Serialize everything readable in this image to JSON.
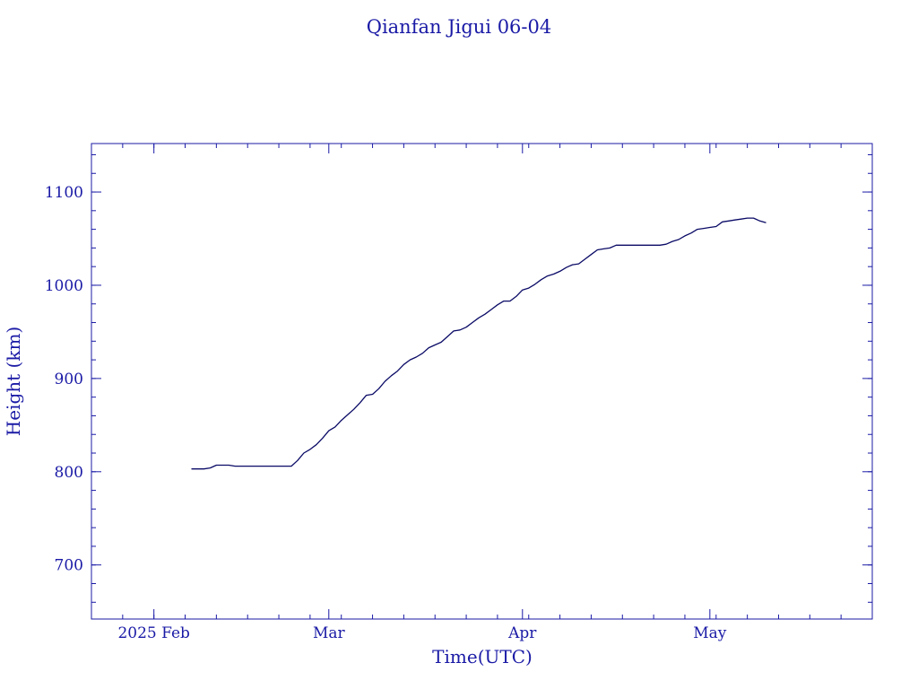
{
  "chart_data": {
    "type": "line",
    "title": "Qianfan Jigui 06-04",
    "xlabel": "Time(UTC)",
    "ylabel": "Height (km)",
    "x_ticks": [
      {
        "date": "2025-02-01",
        "label": "2025 Feb"
      },
      {
        "date": "2025-03-01",
        "label": "Mar"
      },
      {
        "date": "2025-04-01",
        "label": "Apr"
      },
      {
        "date": "2025-05-01",
        "label": "May"
      }
    ],
    "y_ticks": [
      700,
      800,
      900,
      1000,
      1100
    ],
    "xlim": [
      "2025-01-22",
      "2025-05-27"
    ],
    "ylim": [
      642,
      1152
    ],
    "x_minor_tick_days": 5,
    "y_minor_tick": 20,
    "grid": false,
    "line_color": "#0a0a66",
    "axis_color": "#1a1aa6",
    "background": "#ffffff",
    "series": [
      {
        "points": [
          [
            "2025-02-07",
            803
          ],
          [
            "2025-02-08",
            803
          ],
          [
            "2025-02-09",
            803
          ],
          [
            "2025-02-10",
            804
          ],
          [
            "2025-02-11",
            807
          ],
          [
            "2025-02-12",
            807
          ],
          [
            "2025-02-13",
            807
          ],
          [
            "2025-02-14",
            806
          ],
          [
            "2025-02-15",
            806
          ],
          [
            "2025-02-16",
            806
          ],
          [
            "2025-02-17",
            806
          ],
          [
            "2025-02-18",
            806
          ],
          [
            "2025-02-19",
            806
          ],
          [
            "2025-02-20",
            806
          ],
          [
            "2025-02-21",
            806
          ],
          [
            "2025-02-22",
            806
          ],
          [
            "2025-02-23",
            806
          ],
          [
            "2025-02-24",
            812
          ],
          [
            "2025-02-25",
            820
          ],
          [
            "2025-02-26",
            824
          ],
          [
            "2025-02-27",
            829
          ],
          [
            "2025-02-28",
            836
          ],
          [
            "2025-03-01",
            844
          ],
          [
            "2025-03-02",
            848
          ],
          [
            "2025-03-03",
            855
          ],
          [
            "2025-03-04",
            861
          ],
          [
            "2025-03-05",
            867
          ],
          [
            "2025-03-06",
            874
          ],
          [
            "2025-03-07",
            882
          ],
          [
            "2025-03-08",
            883
          ],
          [
            "2025-03-09",
            889
          ],
          [
            "2025-03-10",
            897
          ],
          [
            "2025-03-11",
            903
          ],
          [
            "2025-03-12",
            908
          ],
          [
            "2025-03-13",
            915
          ],
          [
            "2025-03-14",
            920
          ],
          [
            "2025-03-15",
            923
          ],
          [
            "2025-03-16",
            927
          ],
          [
            "2025-03-17",
            933
          ],
          [
            "2025-03-18",
            936
          ],
          [
            "2025-03-19",
            939
          ],
          [
            "2025-03-20",
            945
          ],
          [
            "2025-03-21",
            951
          ],
          [
            "2025-03-22",
            952
          ],
          [
            "2025-03-23",
            955
          ],
          [
            "2025-03-24",
            960
          ],
          [
            "2025-03-25",
            965
          ],
          [
            "2025-03-26",
            969
          ],
          [
            "2025-03-27",
            974
          ],
          [
            "2025-03-28",
            979
          ],
          [
            "2025-03-29",
            983
          ],
          [
            "2025-03-30",
            983
          ],
          [
            "2025-03-31",
            988
          ],
          [
            "2025-04-01",
            995
          ],
          [
            "2025-04-02",
            997
          ],
          [
            "2025-04-03",
            1001
          ],
          [
            "2025-04-04",
            1006
          ],
          [
            "2025-04-05",
            1010
          ],
          [
            "2025-04-06",
            1012
          ],
          [
            "2025-04-07",
            1015
          ],
          [
            "2025-04-08",
            1019
          ],
          [
            "2025-04-09",
            1022
          ],
          [
            "2025-04-10",
            1023
          ],
          [
            "2025-04-11",
            1028
          ],
          [
            "2025-04-12",
            1033
          ],
          [
            "2025-04-13",
            1038
          ],
          [
            "2025-04-14",
            1039
          ],
          [
            "2025-04-15",
            1040
          ],
          [
            "2025-04-16",
            1043
          ],
          [
            "2025-04-17",
            1043
          ],
          [
            "2025-04-18",
            1043
          ],
          [
            "2025-04-19",
            1043
          ],
          [
            "2025-04-20",
            1043
          ],
          [
            "2025-04-21",
            1043
          ],
          [
            "2025-04-22",
            1043
          ],
          [
            "2025-04-23",
            1043
          ],
          [
            "2025-04-24",
            1044
          ],
          [
            "2025-04-25",
            1047
          ],
          [
            "2025-04-26",
            1049
          ],
          [
            "2025-04-27",
            1053
          ],
          [
            "2025-04-28",
            1056
          ],
          [
            "2025-04-29",
            1060
          ],
          [
            "2025-04-30",
            1061
          ],
          [
            "2025-05-01",
            1062
          ],
          [
            "2025-05-02",
            1063
          ],
          [
            "2025-05-03",
            1068
          ],
          [
            "2025-05-04",
            1069
          ],
          [
            "2025-05-05",
            1070
          ],
          [
            "2025-05-06",
            1071
          ],
          [
            "2025-05-07",
            1072
          ],
          [
            "2025-05-08",
            1072
          ],
          [
            "2025-05-09",
            1069
          ],
          [
            "2025-05-10",
            1067
          ]
        ]
      }
    ]
  }
}
